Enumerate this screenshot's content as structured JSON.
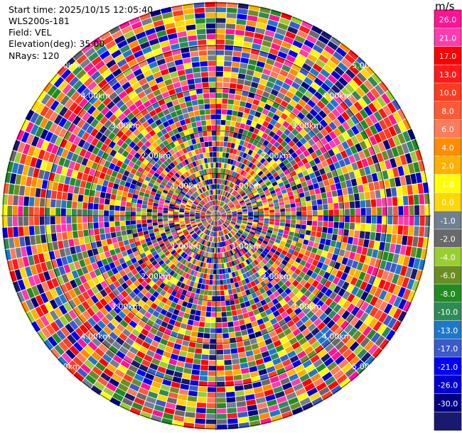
{
  "chart_data": {
    "type": "heatmap",
    "projection": "polar",
    "info": {
      "start_time": "Start time: 2025/10/15 12:05:40",
      "instrument": "WLS200s-181",
      "field": "Field: VEL",
      "elevation": "Elevation(deg): 35.00",
      "nrays": "NRays: 120"
    },
    "rays": 120,
    "gates": 40,
    "range_ring_labels": [
      "1.00km",
      "2.00km",
      "3.00km",
      "4.00km",
      "5.00km"
    ],
    "colorbar": {
      "unit": "m/s",
      "tick_labels": [
        "26.0",
        "21.0",
        "17.0",
        "13.0",
        "10.0",
        "8.0",
        "6.0",
        "4.0",
        "2.0",
        "1.0",
        "0.0",
        "-1.0",
        "-2.0",
        "-4.0",
        "-6.0",
        "-8.0",
        "-10.0",
        "-13.0",
        "-17.0",
        "-21.0",
        "-26.0",
        "-30.0"
      ],
      "colors": [
        "#ff1493",
        "#ff3cae",
        "#ff0000",
        "#ff1a1a",
        "#ff3b1f",
        "#ff5a36",
        "#ff7b5a",
        "#ff8c00",
        "#ffb000",
        "#ffff00",
        "#ffd700",
        "#708090",
        "#696969",
        "#9acd32",
        "#6b8e23",
        "#228b22",
        "#2e8b57",
        "#1e78c8",
        "#3c5ac8",
        "#0000ff",
        "#0000cd",
        "#000080",
        "#191970"
      ]
    }
  }
}
